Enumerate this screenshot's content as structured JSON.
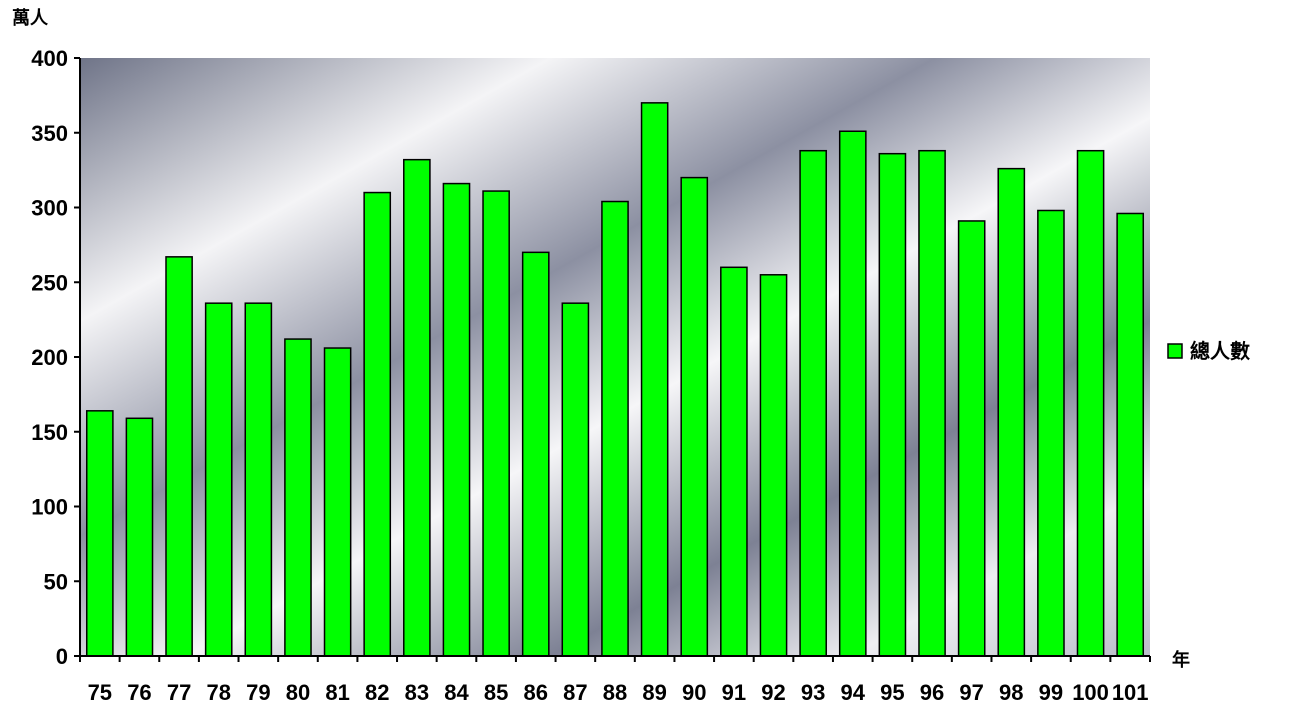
{
  "chart_data": {
    "type": "bar",
    "title": "",
    "ylabel": "萬人",
    "xlabel": "年",
    "ylim": [
      0,
      400
    ],
    "yticks": [
      0,
      50,
      100,
      150,
      200,
      250,
      300,
      350,
      400
    ],
    "grid": false,
    "legend_position": "right",
    "categories": [
      "75",
      "76",
      "77",
      "78",
      "79",
      "80",
      "81",
      "82",
      "83",
      "84",
      "85",
      "86",
      "87",
      "88",
      "89",
      "90",
      "91",
      "92",
      "93",
      "94",
      "95",
      "96",
      "97",
      "98",
      "99",
      "100",
      "101"
    ],
    "series": [
      {
        "name": "總人數",
        "color": "#00ff00",
        "values": [
          164,
          159,
          267,
          236,
          236,
          212,
          206,
          310,
          332,
          316,
          311,
          270,
          236,
          304,
          370,
          320,
          260,
          255,
          338,
          351,
          336,
          338,
          291,
          326,
          298,
          338,
          296
        ]
      }
    ]
  }
}
